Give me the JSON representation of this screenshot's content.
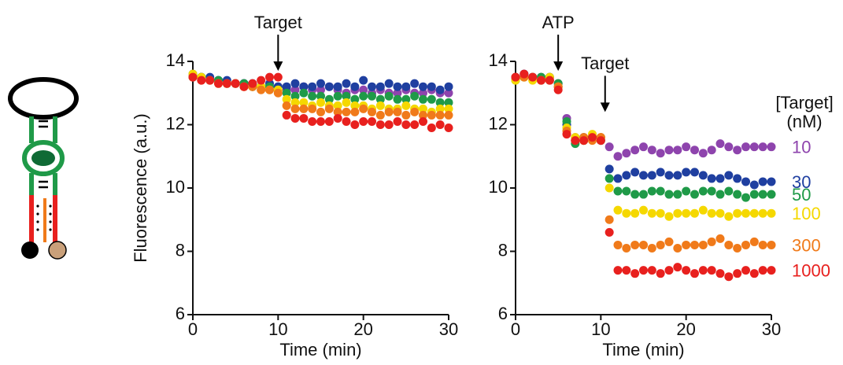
{
  "chart_data": [
    {
      "type": "scatter",
      "ylabel": "Fluorescence (a.u.)",
      "xlabel": "Time (min)",
      "xlim": [
        0,
        30
      ],
      "ylim": [
        6,
        14
      ],
      "xticks": [
        0,
        10,
        20,
        30
      ],
      "yticks": [
        6,
        8,
        10,
        12,
        14
      ],
      "annotations": [
        {
          "text": "Target",
          "x": 10,
          "y": 13.7
        }
      ],
      "x": [
        0,
        1,
        2,
        3,
        4,
        5,
        6,
        7,
        8,
        9,
        10,
        11,
        12,
        13,
        14,
        15,
        16,
        17,
        18,
        19,
        20,
        21,
        22,
        23,
        24,
        25,
        26,
        27,
        28,
        29,
        30
      ],
      "series": [
        {
          "color": "#8e44ad",
          "values": [
            13.5,
            13.5,
            13.4,
            13.4,
            13.3,
            13.3,
            13.3,
            13.2,
            13.2,
            13.2,
            13.2,
            13.1,
            13.1,
            13.2,
            13.1,
            13.1,
            13.2,
            13.1,
            13.0,
            13.1,
            13.1,
            13.0,
            13.1,
            13.0,
            13.0,
            13.1,
            13.0,
            13.0,
            13.1,
            13.0,
            13.0
          ]
        },
        {
          "color": "#1f3fa0",
          "values": [
            13.6,
            13.5,
            13.5,
            13.4,
            13.4,
            13.3,
            13.3,
            13.3,
            13.2,
            13.3,
            13.2,
            13.2,
            13.3,
            13.2,
            13.2,
            13.3,
            13.2,
            13.2,
            13.3,
            13.2,
            13.4,
            13.2,
            13.2,
            13.3,
            13.2,
            13.2,
            13.3,
            13.2,
            13.2,
            13.1,
            13.2
          ]
        },
        {
          "color": "#1f9a48",
          "values": [
            13.5,
            13.5,
            13.4,
            13.4,
            13.3,
            13.3,
            13.3,
            13.2,
            13.2,
            13.2,
            13.1,
            13.0,
            12.9,
            13.0,
            12.9,
            12.9,
            12.8,
            12.9,
            12.9,
            12.8,
            12.9,
            12.9,
            12.8,
            12.9,
            12.8,
            12.8,
            12.9,
            12.8,
            12.8,
            12.7,
            12.7
          ]
        },
        {
          "color": "#f5d800",
          "values": [
            13.6,
            13.5,
            13.4,
            13.3,
            13.3,
            13.3,
            13.2,
            13.2,
            13.2,
            13.1,
            13.1,
            12.8,
            12.7,
            12.7,
            12.6,
            12.7,
            12.6,
            12.6,
            12.7,
            12.6,
            12.6,
            12.5,
            12.6,
            12.5,
            12.5,
            12.6,
            12.5,
            12.5,
            12.4,
            12.5,
            12.5
          ]
        },
        {
          "color": "#f07a1a",
          "values": [
            13.5,
            13.4,
            13.4,
            13.3,
            13.3,
            13.3,
            13.2,
            13.2,
            13.1,
            13.1,
            13.0,
            12.6,
            12.5,
            12.5,
            12.5,
            12.4,
            12.5,
            12.4,
            12.4,
            12.4,
            12.5,
            12.4,
            12.3,
            12.4,
            12.4,
            12.3,
            12.4,
            12.3,
            12.3,
            12.3,
            12.3
          ]
        },
        {
          "color": "#e8201e",
          "values": [
            13.5,
            13.4,
            13.4,
            13.3,
            13.3,
            13.3,
            13.2,
            13.3,
            13.4,
            13.5,
            13.5,
            12.3,
            12.2,
            12.2,
            12.1,
            12.1,
            12.1,
            12.2,
            12.1,
            12.0,
            12.1,
            12.1,
            12.0,
            12.0,
            12.1,
            12.0,
            12.0,
            12.1,
            11.9,
            12.0,
            11.9
          ]
        }
      ]
    },
    {
      "type": "scatter",
      "xlabel": "Time (min)",
      "xlim": [
        0,
        30
      ],
      "ylim": [
        6,
        14
      ],
      "xticks": [
        0,
        10,
        20,
        30
      ],
      "yticks": [
        6,
        8,
        10,
        12,
        14
      ],
      "annotations": [
        {
          "text": "ATP",
          "x": 5,
          "y": 13.7
        },
        {
          "text": "Target",
          "x": 10.5,
          "y": 12.4
        }
      ],
      "legend_title": [
        "[Target]",
        "(nM)"
      ],
      "x": [
        0,
        1,
        2,
        3,
        4,
        5,
        6,
        7,
        8,
        9,
        10,
        11,
        12,
        13,
        14,
        15,
        16,
        17,
        18,
        19,
        20,
        21,
        22,
        23,
        24,
        25,
        26,
        27,
        28,
        29,
        30
      ],
      "series": [
        {
          "name": "10",
          "color": "#8e44ad",
          "values": [
            13.5,
            13.6,
            13.5,
            13.5,
            13.5,
            13.3,
            12.2,
            11.6,
            11.5,
            11.6,
            11.5,
            11.3,
            11.0,
            11.1,
            11.2,
            11.3,
            11.2,
            11.1,
            11.2,
            11.2,
            11.3,
            11.2,
            11.1,
            11.2,
            11.4,
            11.3,
            11.2,
            11.3,
            11.3,
            11.3,
            11.3
          ]
        },
        {
          "name": "30",
          "color": "#1f3fa0",
          "values": [
            13.5,
            13.6,
            13.5,
            13.4,
            13.5,
            13.2,
            12.0,
            11.5,
            11.6,
            11.6,
            11.6,
            10.6,
            10.3,
            10.4,
            10.5,
            10.4,
            10.4,
            10.5,
            10.4,
            10.4,
            10.5,
            10.5,
            10.4,
            10.3,
            10.3,
            10.4,
            10.3,
            10.2,
            10.1,
            10.2,
            10.2
          ]
        },
        {
          "name": "50",
          "color": "#1f9a48",
          "values": [
            13.4,
            13.5,
            13.5,
            13.5,
            13.4,
            13.3,
            12.1,
            11.4,
            11.5,
            11.6,
            11.5,
            10.3,
            9.9,
            9.9,
            9.8,
            9.8,
            9.9,
            9.9,
            9.8,
            9.8,
            9.9,
            9.8,
            9.9,
            9.9,
            9.8,
            9.9,
            9.8,
            9.7,
            9.8,
            9.8,
            9.8
          ]
        },
        {
          "name": "100",
          "color": "#f5d800",
          "values": [
            13.4,
            13.5,
            13.4,
            13.4,
            13.5,
            13.2,
            11.9,
            11.6,
            11.5,
            11.7,
            11.6,
            10.0,
            9.3,
            9.2,
            9.2,
            9.3,
            9.2,
            9.2,
            9.1,
            9.2,
            9.2,
            9.2,
            9.3,
            9.2,
            9.2,
            9.1,
            9.2,
            9.2,
            9.2,
            9.2,
            9.2
          ]
        },
        {
          "name": "300",
          "color": "#f07a1a",
          "values": [
            13.5,
            13.5,
            13.5,
            13.4,
            13.4,
            13.2,
            11.8,
            11.5,
            11.6,
            11.5,
            11.6,
            9.0,
            8.2,
            8.1,
            8.2,
            8.2,
            8.1,
            8.2,
            8.3,
            8.1,
            8.2,
            8.2,
            8.2,
            8.3,
            8.4,
            8.2,
            8.1,
            8.2,
            8.3,
            8.2,
            8.2
          ]
        },
        {
          "name": "1000",
          "color": "#e8201e",
          "values": [
            13.5,
            13.6,
            13.5,
            13.4,
            13.4,
            13.1,
            11.7,
            11.5,
            11.5,
            11.6,
            11.5,
            8.6,
            7.4,
            7.4,
            7.3,
            7.4,
            7.4,
            7.3,
            7.4,
            7.5,
            7.4,
            7.3,
            7.4,
            7.4,
            7.3,
            7.2,
            7.3,
            7.4,
            7.3,
            7.4,
            7.4
          ]
        }
      ]
    }
  ]
}
